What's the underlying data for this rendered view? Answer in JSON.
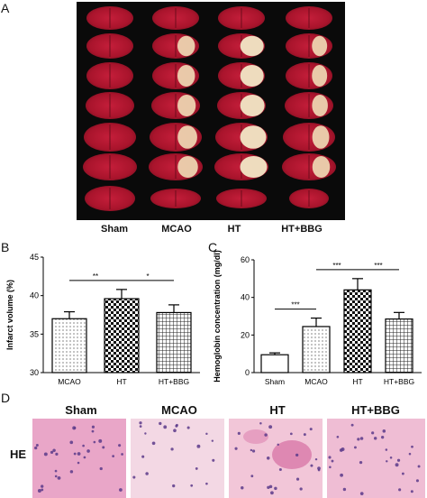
{
  "figure": {
    "panel_a": {
      "letter": "A",
      "groups": [
        "Sham",
        "MCAO",
        "HT",
        "HT+BBG"
      ]
    },
    "panel_b": {
      "letter": "B"
    },
    "panel_c": {
      "letter": "C"
    },
    "panel_d": {
      "letter": "D",
      "row_label": "HE",
      "groups": [
        "Sham",
        "MCAO",
        "HT",
        "HT+BBG"
      ]
    }
  },
  "chart_data": [
    {
      "type": "bar",
      "ylabel": "Infarct volume (%)",
      "categories": [
        "MCAO",
        "HT",
        "HT+BBG"
      ],
      "values": [
        37.0,
        39.6,
        37.8
      ],
      "errors": [
        0.9,
        1.2,
        1.0
      ],
      "ylim": [
        30,
        45
      ],
      "yticks": [
        "30",
        "35",
        "40",
        "45"
      ],
      "patterns": [
        "dots",
        "checker",
        "grid"
      ],
      "significance": [
        {
          "from": 0,
          "to": 1,
          "label": "**"
        },
        {
          "from": 1,
          "to": 2,
          "label": "*"
        }
      ]
    },
    {
      "type": "bar",
      "ylabel": "Hemoglobin concentration (mg/dl)",
      "categories": [
        "Sham",
        "MCAO",
        "HT",
        "HT+BBG"
      ],
      "values": [
        9.5,
        24.5,
        44.0,
        28.5
      ],
      "errors": [
        1.0,
        4.5,
        6.0,
        3.5
      ],
      "ylim": [
        0,
        60
      ],
      "yticks": [
        "0",
        "20",
        "40",
        "60"
      ],
      "patterns": [
        "plain",
        "dots",
        "checker",
        "grid"
      ],
      "significance": [
        {
          "from": 0,
          "to": 1,
          "label": "***"
        },
        {
          "from": 1,
          "to": 2,
          "label": "***"
        },
        {
          "from": 2,
          "to": 3,
          "label": "***"
        }
      ]
    }
  ]
}
